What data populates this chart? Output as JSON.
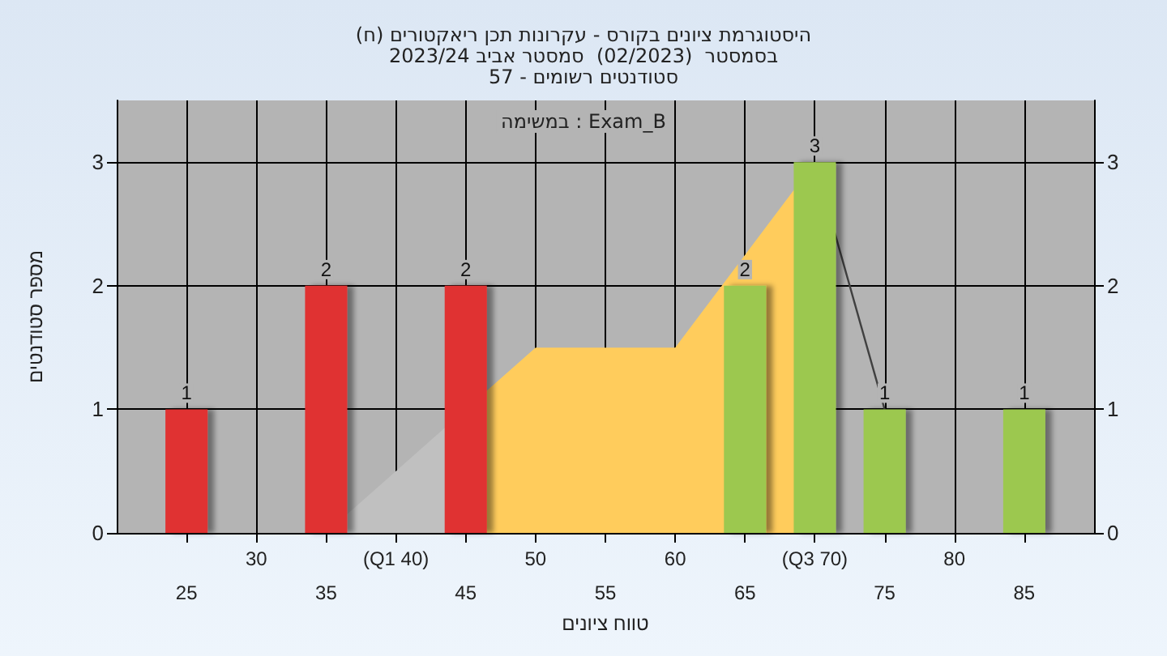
{
  "chart_data": {
    "type": "bar",
    "title": "היסטוגרמת ציונים בקורס - עקרונות תכן ריאקטורים (ח)",
    "subtitle": "בסמסטר  (02/2023)  סמסטר אביב 2023/24\nסטודנטים רשומים - 57",
    "xlabel": "טווח ציונים",
    "ylabel": "מספר סטודנטים",
    "annotations": [
      "במשימה : Exam_B"
    ],
    "series": [
      {
        "type": "area",
        "x": [
          35,
          40,
          50,
          60,
          70
        ],
        "values": [
          0,
          0.5,
          1.5,
          1.5,
          3
        ],
        "colors": [
          "#c0c0c0",
          "#c0c0c0",
          "#ffcc5c",
          "#ffcc5c",
          "#ffcc5c"
        ]
      },
      {
        "type": "line",
        "color": "#404040",
        "x": [
          70,
          75
        ],
        "values": [
          3,
          1
        ]
      },
      {
        "x": [
          25,
          35,
          45,
          65,
          70,
          75,
          85
        ],
        "values": [
          1,
          2,
          2,
          2,
          3,
          1,
          1
        ],
        "value_labels": [
          "1",
          "2",
          "2",
          "2",
          "3",
          "1",
          "1"
        ],
        "colors": [
          "#e03030",
          "#e03030",
          "#e03030",
          "#9cc850",
          "#9cc850",
          "#9cc850",
          "#9cc850"
        ]
      }
    ],
    "marker": "none",
    "grid": true,
    "xlim": [
      20,
      90
    ],
    "xticks": [
      25,
      35,
      45,
      55,
      65,
      75,
      85
    ],
    "x2lim": [
      20,
      90
    ],
    "x2ticks": [
      30,
      {
        "value": 40,
        "label": "(Q1 40)"
      },
      50,
      60,
      {
        "value": 70,
        "label": "(Q3 70)"
      },
      80
    ],
    "ylim": [
      0,
      3.5
    ],
    "yticks": [
      0,
      1,
      2,
      3
    ],
    "y2lim": [
      0,
      3.5
    ],
    "y2ticks": [
      0,
      1,
      2,
      3
    ]
  }
}
